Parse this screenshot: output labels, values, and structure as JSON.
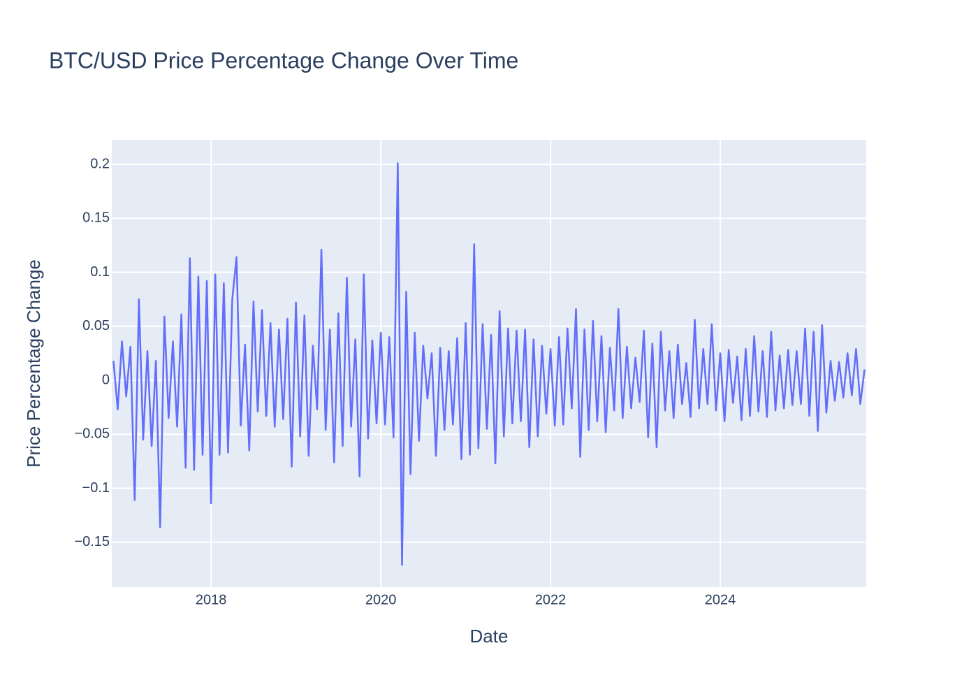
{
  "chart_data": {
    "type": "line",
    "title": "BTC/USD Price Percentage Change Over Time",
    "x_label": "Date",
    "y_label": "Price Percentage Change",
    "x": [
      2016.85,
      2016.9,
      2016.95,
      2017.0,
      2017.05,
      2017.1,
      2017.15,
      2017.2,
      2017.25,
      2017.3,
      2017.35,
      2017.4,
      2017.45,
      2017.5,
      2017.55,
      2017.6,
      2017.65,
      2017.7,
      2017.75,
      2017.8,
      2017.85,
      2017.9,
      2017.95,
      2018.0,
      2018.05,
      2018.1,
      2018.15,
      2018.2,
      2018.25,
      2018.3,
      2018.35,
      2018.4,
      2018.45,
      2018.5,
      2018.55,
      2018.6,
      2018.65,
      2018.7,
      2018.75,
      2018.8,
      2018.85,
      2018.9,
      2018.95,
      2019.0,
      2019.05,
      2019.1,
      2019.15,
      2019.2,
      2019.25,
      2019.3,
      2019.35,
      2019.4,
      2019.45,
      2019.5,
      2019.55,
      2019.6,
      2019.65,
      2019.7,
      2019.75,
      2019.8,
      2019.85,
      2019.9,
      2019.95,
      2020.0,
      2020.05,
      2020.1,
      2020.15,
      2020.2,
      2020.25,
      2020.3,
      2020.35,
      2020.4,
      2020.45,
      2020.5,
      2020.55,
      2020.6,
      2020.65,
      2020.7,
      2020.75,
      2020.8,
      2020.85,
      2020.9,
      2020.95,
      2021.0,
      2021.05,
      2021.1,
      2021.15,
      2021.2,
      2021.25,
      2021.3,
      2021.35,
      2021.4,
      2021.45,
      2021.5,
      2021.55,
      2021.6,
      2021.65,
      2021.7,
      2021.75,
      2021.8,
      2021.85,
      2021.9,
      2021.95,
      2022.0,
      2022.05,
      2022.1,
      2022.15,
      2022.2,
      2022.25,
      2022.3,
      2022.35,
      2022.4,
      2022.45,
      2022.5,
      2022.55,
      2022.6,
      2022.65,
      2022.7,
      2022.75,
      2022.8,
      2022.85,
      2022.9,
      2022.95,
      2023.0,
      2023.05,
      2023.1,
      2023.15,
      2023.2,
      2023.25,
      2023.3,
      2023.35,
      2023.4,
      2023.45,
      2023.5,
      2023.55,
      2023.6,
      2023.65,
      2023.7,
      2023.75,
      2023.8,
      2023.85,
      2023.9,
      2023.95,
      2024.0,
      2024.05,
      2024.1,
      2024.15,
      2024.2,
      2024.25,
      2024.3,
      2024.35,
      2024.4,
      2024.45,
      2024.5,
      2024.55,
      2024.6,
      2024.65,
      2024.7,
      2024.75,
      2024.8,
      2024.85,
      2024.9,
      2024.95,
      2025.0,
      2025.05,
      2025.1,
      2025.15,
      2025.2,
      2025.25,
      2025.3,
      2025.35,
      2025.4,
      2025.45,
      2025.5,
      2025.55,
      2025.6,
      2025.65,
      2025.7
    ],
    "series": [
      {
        "name": "Price Percentage Change",
        "color": "#636efa",
        "values": [
          0.018,
          -0.027,
          0.036,
          -0.015,
          0.031,
          -0.111,
          0.075,
          -0.055,
          0.027,
          -0.061,
          0.018,
          -0.136,
          0.059,
          -0.035,
          0.036,
          -0.043,
          0.061,
          -0.081,
          0.113,
          -0.083,
          0.096,
          -0.069,
          0.092,
          -0.114,
          0.098,
          -0.069,
          0.09,
          -0.067,
          0.075,
          0.114,
          -0.042,
          0.033,
          -0.065,
          0.073,
          -0.029,
          0.065,
          -0.033,
          0.053,
          -0.043,
          0.047,
          -0.036,
          0.057,
          -0.08,
          0.072,
          -0.052,
          0.06,
          -0.07,
          0.032,
          -0.027,
          0.121,
          -0.046,
          0.047,
          -0.076,
          0.062,
          -0.061,
          0.095,
          -0.043,
          0.038,
          -0.089,
          0.098,
          -0.054,
          0.037,
          -0.04,
          0.044,
          -0.041,
          0.04,
          -0.053,
          0.201,
          -0.171,
          0.082,
          -0.087,
          0.044,
          -0.056,
          0.032,
          -0.017,
          0.025,
          -0.07,
          0.03,
          -0.046,
          0.027,
          -0.041,
          0.039,
          -0.073,
          0.053,
          -0.069,
          0.126,
          -0.063,
          0.052,
          -0.045,
          0.042,
          -0.077,
          0.064,
          -0.052,
          0.048,
          -0.04,
          0.046,
          -0.038,
          0.047,
          -0.062,
          0.038,
          -0.052,
          0.032,
          -0.031,
          0.029,
          -0.042,
          0.04,
          -0.041,
          0.048,
          -0.026,
          0.066,
          -0.071,
          0.047,
          -0.046,
          0.055,
          -0.038,
          0.041,
          -0.048,
          0.03,
          -0.028,
          0.066,
          -0.035,
          0.031,
          -0.026,
          0.021,
          -0.02,
          0.046,
          -0.053,
          0.034,
          -0.062,
          0.045,
          -0.028,
          0.027,
          -0.035,
          0.033,
          -0.022,
          0.016,
          -0.034,
          0.056,
          -0.026,
          0.029,
          -0.022,
          0.052,
          -0.028,
          0.025,
          -0.038,
          0.028,
          -0.021,
          0.022,
          -0.037,
          0.029,
          -0.033,
          0.041,
          -0.029,
          0.027,
          -0.034,
          0.045,
          -0.028,
          0.023,
          -0.026,
          0.028,
          -0.023,
          0.027,
          -0.022,
          0.048,
          -0.033,
          0.045,
          -0.047,
          0.051,
          -0.03,
          0.018,
          -0.019,
          0.017,
          -0.016,
          0.025,
          -0.014,
          0.029,
          -0.022,
          0.01
        ]
      }
    ],
    "xlim": [
      2016.83,
      2025.72
    ],
    "xticks": [
      2018,
      2020,
      2022,
      2024
    ],
    "ylim": [
      -0.1916,
      0.2227
    ],
    "yticks": [
      {
        "value": -0.15,
        "label": "−0.15"
      },
      {
        "value": -0.1,
        "label": "−0.1"
      },
      {
        "value": -0.05,
        "label": "−0.05"
      },
      0,
      0.05,
      0.1,
      0.15,
      0.2
    ],
    "grid": true
  }
}
